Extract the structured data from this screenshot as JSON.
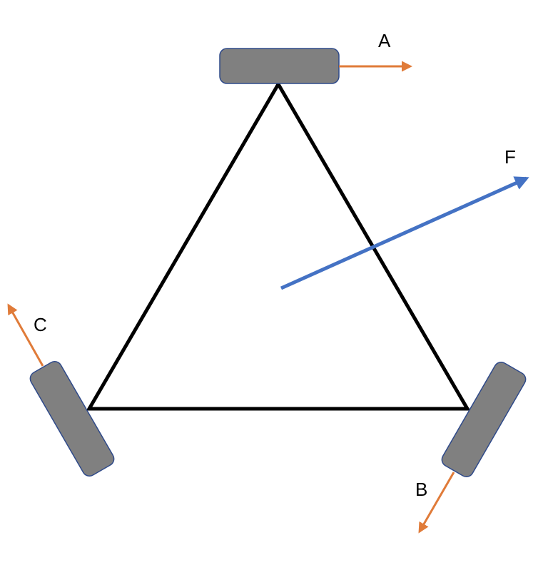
{
  "diagram": {
    "labels": {
      "a": "A",
      "b": "B",
      "c": "C",
      "f": "F"
    },
    "colors": {
      "triangle": "#000000",
      "wheel_fill": "#808080",
      "wheel_stroke": "#2F4A8A",
      "wheel_force": "#E07B39",
      "net_force": "#4472C4"
    }
  }
}
